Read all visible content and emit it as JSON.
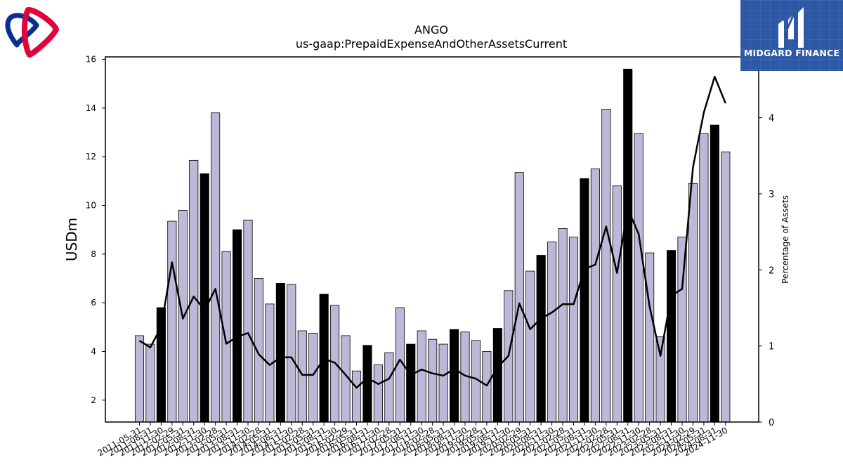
{
  "logos": {
    "left_brand_colors": [
      "#e4003b",
      "#0a2f8f"
    ],
    "right_brand_text": "MIDGARD FINANCE",
    "right_brand_bg": "#2d58a6"
  },
  "chart_data": {
    "type": "bar",
    "title": "ANGO",
    "subtitle": "us-gaap:PrepaidExpenseAndOtherAssetsCurrent",
    "ylabel": "USDm",
    "y2label": "Percentage of Assets",
    "ylim": [
      1.1,
      16.1
    ],
    "y2lim": [
      0,
      4.8
    ],
    "yticks": [
      2,
      4,
      6,
      8,
      10,
      12,
      14,
      16
    ],
    "y2ticks": [
      0,
      1,
      2,
      3,
      4
    ],
    "bar_color": "#bcb8d8",
    "highlight_color": "#000000",
    "line_color": "#000000",
    "categories": [
      "2011-05-31",
      "2011-08-31",
      "2011-11-30",
      "2012-02-29",
      "2012-05-31",
      "2012-08-31",
      "2012-11-30",
      "2013-02-28",
      "2013-05-31",
      "2013-08-31",
      "2013-11-30",
      "2014-02-28",
      "2014-05-31",
      "2014-08-31",
      "2014-11-30",
      "2015-02-28",
      "2015-05-31",
      "2015-08-31",
      "2015-11-30",
      "2016-02-29",
      "2016-05-31",
      "2016-08-31",
      "2016-11-30",
      "2017-02-28",
      "2017-05-31",
      "2017-08-31",
      "2017-11-30",
      "2018-02-28",
      "2018-05-31",
      "2018-08-31",
      "2018-11-30",
      "2019-02-28",
      "2019-05-31",
      "2019-08-31",
      "2019-11-30",
      "2020-02-29",
      "2020-05-31",
      "2020-08-31",
      "2020-11-30",
      "2021-02-28",
      "2021-05-31",
      "2021-08-31",
      "2021-11-30",
      "2022-02-28",
      "2022-05-31",
      "2022-08-31",
      "2022-11-30",
      "2023-02-28",
      "2023-05-31",
      "2023-08-31",
      "2023-11-30",
      "2024-02-29",
      "2024-05-31",
      "2024-08-31",
      "2024-11-30"
    ],
    "highlighted": [
      false,
      false,
      true,
      false,
      false,
      false,
      true,
      false,
      false,
      true,
      false,
      false,
      false,
      true,
      false,
      false,
      false,
      true,
      false,
      false,
      false,
      true,
      false,
      false,
      false,
      true,
      false,
      false,
      false,
      true,
      false,
      false,
      false,
      true,
      false,
      false,
      false,
      true,
      false,
      false,
      false,
      true,
      false,
      false,
      false,
      true,
      false,
      false,
      false,
      true,
      false,
      false,
      false,
      true,
      false
    ],
    "series": [
      {
        "name": "USDm",
        "axis": "left",
        "values": [
          4.65,
          4.3,
          5.8,
          9.35,
          9.8,
          11.85,
          11.3,
          13.8,
          8.1,
          9.0,
          9.4,
          7.0,
          5.95,
          6.8,
          6.75,
          4.85,
          4.75,
          6.35,
          5.9,
          4.65,
          3.2,
          4.25,
          3.45,
          3.95,
          5.8,
          4.3,
          4.85,
          4.5,
          4.3,
          4.9,
          4.8,
          4.45,
          4.0,
          4.95,
          6.5,
          11.35,
          7.3,
          7.95,
          8.5,
          9.05,
          8.7,
          11.1,
          11.5,
          13.95,
          10.8,
          15.6,
          12.95,
          8.05,
          4.6,
          8.15,
          8.7,
          10.9,
          12.95,
          13.3,
          12.2
        ]
      },
      {
        "name": "Percentage of Assets",
        "axis": "right",
        "type": "line",
        "values": [
          1.07,
          0.98,
          1.25,
          2.1,
          1.36,
          1.65,
          1.47,
          1.75,
          1.03,
          1.12,
          1.17,
          0.89,
          0.75,
          0.85,
          0.85,
          0.62,
          0.62,
          0.83,
          0.78,
          0.62,
          0.45,
          0.58,
          0.5,
          0.57,
          0.82,
          0.62,
          0.69,
          0.64,
          0.61,
          0.7,
          0.61,
          0.57,
          0.48,
          0.72,
          0.87,
          1.56,
          1.22,
          1.36,
          1.44,
          1.55,
          1.55,
          2.01,
          2.07,
          2.57,
          1.96,
          2.8,
          2.47,
          1.52,
          0.87,
          1.66,
          1.75,
          3.35,
          4.07,
          4.54,
          4.19
        ]
      }
    ]
  }
}
